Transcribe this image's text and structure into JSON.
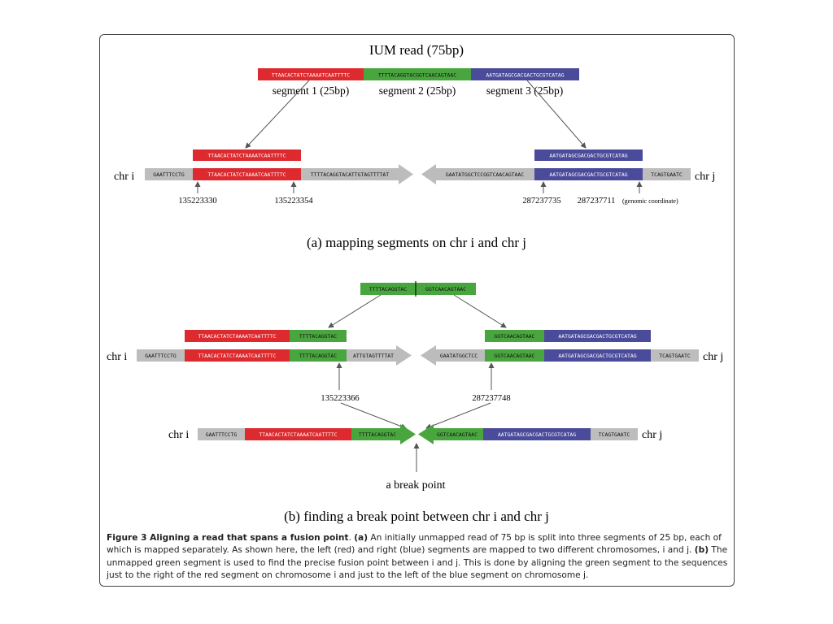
{
  "colors": {
    "red": "#dc2a2f",
    "green": "#49a63f",
    "blue": "#4b4b9b",
    "gray": "#bdbdbd",
    "arrow_gray": "#bcbcbc",
    "text_light": "#ffffff",
    "text_dark": "#111111"
  },
  "panel_a": {
    "read_title": "IUM read (75bp)",
    "read": {
      "seg1": "TTAACACTATCTAAAATCAATTTTC",
      "seg2": "TTTTACAGGTACGGTCAACAGTAAC",
      "seg3": "AATGATAGCGACGACTGCGTCATAG"
    },
    "seg_labels": [
      "segment 1 (25bp)",
      "segment 2 (25bp)",
      "segment 3 (25bp)"
    ],
    "chr_i_label": "chr i",
    "chr_j_label": "chr j",
    "mapped_left": "TTAACACTATCTAAAATCAATTTTC",
    "mapped_right": "AATGATAGCGACGACTGCGTCATAG",
    "chr_i": {
      "flank_left": "GAATTTCCTG",
      "match": "TTAACACTATCTAAAATCAATTTTC",
      "flank_right": "TTTTACAGGTACATTGTAGTTTTAT"
    },
    "chr_j": {
      "flank_left": "GAATATGGCTCCGGTCAACAGTAAC",
      "match": "AATGATAGCGACGACTGCGTCATAG",
      "flank_right": "TCAGTGAATC"
    },
    "coords": {
      "i_start": "135223330",
      "i_end": "135223354",
      "j_start": "287237735",
      "j_end": "287237711",
      "genomic_note": "(genomic coordinate)"
    },
    "caption": "(a) mapping segments on chr i and chr j"
  },
  "panel_b": {
    "green_split": {
      "left": "TTTTACAGGTAC",
      "right": "GGTCAACAGTAAC"
    },
    "left_aligned": {
      "red": "TTAACACTATCTAAAATCAATTTTC",
      "green": "TTTTACAGGTAC"
    },
    "right_aligned": {
      "green": "GGTCAACAGTAAC",
      "blue": "AATGATAGCGACGACTGCGTCATAG"
    },
    "chr_i_label": "chr i",
    "chr_j_label": "chr j",
    "chr_i": {
      "flank_left": "GAATTTCCTG",
      "red": "TTAACACTATCTAAAATCAATTTTC",
      "green": "TTTTACAGGTAC",
      "flank_right": "ATTGTAGTTTTAT"
    },
    "chr_j": {
      "flank_left": "GAATATGGCTCC",
      "green": "GGTCAACAGTAAC",
      "blue": "AATGATAGCGACGACTGCGTCATAG",
      "flank_right": "TCAGTGAATC"
    },
    "coord_i": "135223366",
    "coord_j": "287237748",
    "fusion": {
      "chr_i_label": "chr i",
      "chr_j_label": "chr j",
      "gray_left": "GAATTTCCTG",
      "red": "TTAACACTATCTAAAATCAATTTTC",
      "green_left": "TTTTACAGGTAC",
      "green_right": "GGTCAACAGTAAC",
      "blue": "AATGATAGCGACGACTGCGTCATAG",
      "gray_right": "TCAGTGAATC"
    },
    "break_label": "a break point",
    "caption": "(b) finding a break point between chr i and chr j"
  },
  "figure_caption": {
    "title": "Figure 3 Aligning a read that spans a fusion point",
    "text1": ". ",
    "a_label": "(a)",
    "text2": " An initially unmapped read of 75 bp is split into three segments of 25 bp, each of which is mapped separately. As shown here, the left (red) and right (blue) segments are mapped to two different chromosomes, i and j. ",
    "b_label": "(b)",
    "text3": " The unmapped green segment is used to find the precise fusion point between i and j. This is done by aligning the green segment to the sequences just to the right of the red segment on chromosome i and just to the left of the blue segment on chromosome j."
  }
}
